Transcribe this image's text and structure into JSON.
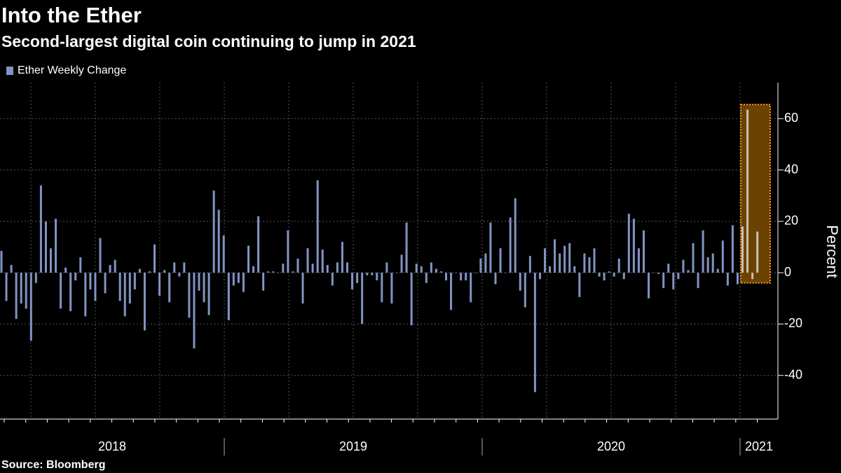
{
  "chart_data": {
    "type": "bar",
    "title": "Into the Ether",
    "subtitle": "Second-largest digital coin continuing to jump in 2021",
    "source": "Source: Bloomberg",
    "y_label": "Percent",
    "year_labels": [
      "2018",
      "2019",
      "2020",
      "2021"
    ],
    "series": [
      {
        "name": "Ether Weekly Change",
        "color": "#8195c2",
        "values": [
          8.5,
          -11,
          3,
          -18,
          -12,
          -14,
          -26.5,
          -4,
          34,
          20,
          9.5,
          21,
          -14,
          2,
          -15,
          -3,
          6,
          -17,
          -6.5,
          -11,
          13.5,
          -8,
          3,
          5,
          -11,
          -17,
          -12,
          -6.5,
          1.5,
          -22.5,
          0.5,
          11,
          -9,
          1,
          -11.5,
          4,
          -1.5,
          4,
          -17.5,
          -29.5,
          -7,
          -11.5,
          -16.5,
          32,
          24.5,
          14.5,
          -18.5,
          -5,
          -4,
          -7.5,
          10.5,
          2.5,
          22,
          -7,
          0.5,
          0.5,
          0,
          3.5,
          16.5,
          0.5,
          5.5,
          -12,
          9.5,
          3.5,
          36,
          9,
          3,
          -5,
          4,
          12,
          4,
          -6.5,
          -4,
          -20,
          -1,
          -1,
          -3,
          -11.5,
          4,
          -12,
          0,
          7,
          19.5,
          -20.5,
          3.5,
          2.5,
          -4,
          4,
          1.5,
          0.5,
          -3,
          -14.5,
          0,
          -3,
          -3,
          -11.5,
          0,
          5.5,
          7.5,
          19.5,
          -4.5,
          9.5,
          0,
          21.5,
          29,
          -7,
          -13.5,
          6.5,
          -46.5,
          -2.5,
          9.5,
          2.5,
          13,
          7.5,
          10.5,
          11.5,
          2.5,
          -9.5,
          7.5,
          6,
          9.5,
          -1.5,
          -3,
          0.5,
          -1.5,
          5.5,
          -2.5,
          23,
          21,
          9.5,
          16.5,
          -10,
          0,
          -0.5,
          -6,
          3.5,
          -6.5,
          -2.5,
          5,
          1,
          11.5,
          -6,
          16.5,
          6,
          7.5,
          1.5,
          12.5,
          -5,
          18.5,
          -4.5,
          18,
          63.5,
          -2.5,
          16
        ]
      }
    ],
    "ylim": [
      -57,
      74
    ],
    "yticks": [
      -40,
      -20,
      0,
      20,
      40,
      60
    ],
    "grid": true
  }
}
